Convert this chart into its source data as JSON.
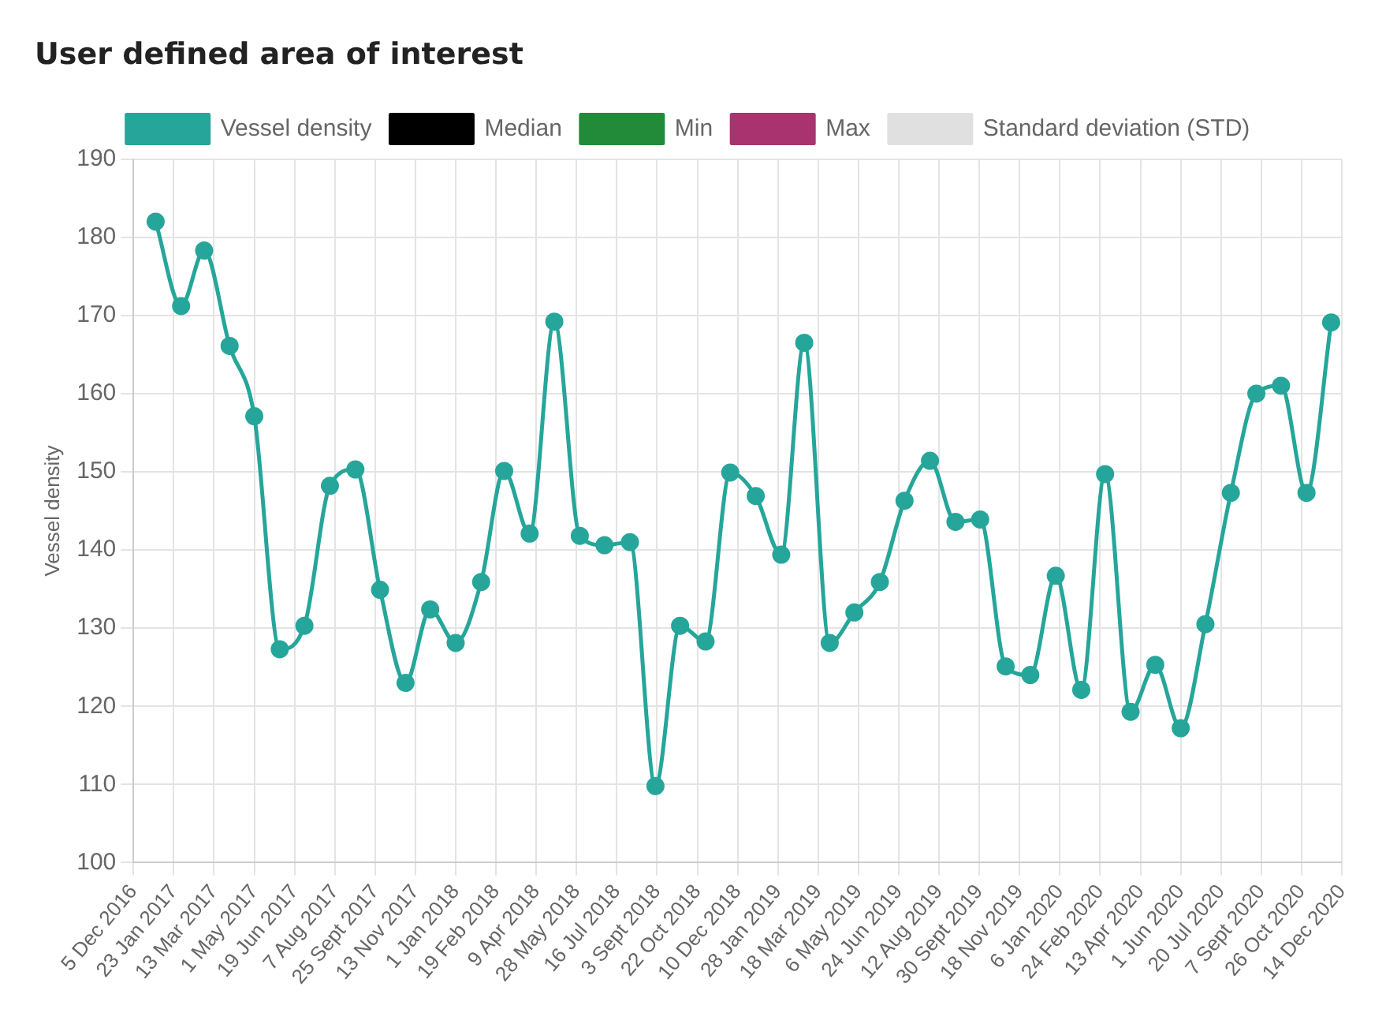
{
  "chart_data": {
    "type": "line",
    "title": "User defined area of interest",
    "ylabel": "Vessel density",
    "x": [
      "2017-01-01",
      "2017-02-01",
      "2017-03-01",
      "2017-04-01",
      "2017-05-01",
      "2017-06-01",
      "2017-07-01",
      "2017-08-01",
      "2017-09-01",
      "2017-10-01",
      "2017-11-01",
      "2017-12-01",
      "2018-01-01",
      "2018-02-01",
      "2018-03-01",
      "2018-04-01",
      "2018-05-01",
      "2018-06-01",
      "2018-07-01",
      "2018-08-01",
      "2018-09-01",
      "2018-10-01",
      "2018-11-01",
      "2018-12-01",
      "2019-01-01",
      "2019-02-01",
      "2019-03-01",
      "2019-04-01",
      "2019-05-01",
      "2019-06-01",
      "2019-07-01",
      "2019-08-01",
      "2019-09-01",
      "2019-10-01",
      "2019-11-01",
      "2019-12-01",
      "2020-01-01",
      "2020-02-01",
      "2020-03-01",
      "2020-04-01",
      "2020-05-01",
      "2020-06-01",
      "2020-07-01",
      "2020-08-01",
      "2020-09-01",
      "2020-10-01",
      "2020-11-01",
      "2020-12-01"
    ],
    "series": [
      {
        "name": "Vessel density",
        "color": "#26a69a",
        "values": [
          182,
          171.2,
          178.3,
          166.1,
          157.1,
          127.3,
          130.3,
          148.2,
          150.3,
          134.9,
          123,
          132.4,
          128.1,
          135.9,
          150.1,
          142.1,
          169.2,
          141.8,
          140.6,
          141,
          109.8,
          130.3,
          128.3,
          149.9,
          146.9,
          139.4,
          166.5,
          128.1,
          132,
          135.9,
          146.3,
          151.4,
          143.6,
          143.9,
          125.1,
          124,
          136.7,
          122.1,
          149.7,
          119.3,
          125.3,
          117.2,
          130.5,
          147.3,
          160,
          161,
          147.3,
          169.1
        ]
      },
      {
        "name": "Median",
        "color": "#000000",
        "values": [
          null,
          null,
          null,
          null,
          null,
          null,
          null,
          null,
          null,
          null,
          null,
          null,
          null,
          null,
          null,
          null,
          null,
          null,
          null,
          null,
          null,
          null,
          null,
          null,
          null,
          null,
          null,
          null,
          null,
          null,
          null,
          null,
          null,
          null,
          null,
          null,
          null,
          null,
          null,
          null,
          null,
          null,
          null,
          null,
          null,
          null,
          null,
          null
        ]
      },
      {
        "name": "Min",
        "color": "#228b3a",
        "values": [
          null,
          null,
          null,
          null,
          null,
          null,
          null,
          null,
          null,
          null,
          null,
          null,
          null,
          null,
          null,
          null,
          null,
          null,
          null,
          null,
          null,
          null,
          null,
          null,
          null,
          null,
          null,
          null,
          null,
          null,
          null,
          null,
          null,
          null,
          null,
          null,
          null,
          null,
          null,
          null,
          null,
          null,
          null,
          null,
          null,
          null,
          null,
          null
        ]
      },
      {
        "name": "Max",
        "color": "#a8336f",
        "values": [
          null,
          null,
          null,
          null,
          null,
          null,
          null,
          null,
          null,
          null,
          null,
          null,
          null,
          null,
          null,
          null,
          null,
          null,
          null,
          null,
          null,
          null,
          null,
          null,
          null,
          null,
          null,
          null,
          null,
          null,
          null,
          null,
          null,
          null,
          null,
          null,
          null,
          null,
          null,
          null,
          null,
          null,
          null,
          null,
          null,
          null,
          null,
          null
        ]
      },
      {
        "name": "Standard deviation (STD)",
        "color": "#e0e0e0",
        "values": [
          null,
          null,
          null,
          null,
          null,
          null,
          null,
          null,
          null,
          null,
          null,
          null,
          null,
          null,
          null,
          null,
          null,
          null,
          null,
          null,
          null,
          null,
          null,
          null,
          null,
          null,
          null,
          null,
          null,
          null,
          null,
          null,
          null,
          null,
          null,
          null,
          null,
          null,
          null,
          null,
          null,
          null,
          null,
          null,
          null,
          null,
          null,
          null
        ]
      }
    ],
    "xlim": [
      "2016-12-05",
      "2020-12-14"
    ],
    "xticks": [
      {
        "value": "2016-12-05",
        "label": "5 Dec 2016"
      },
      {
        "value": "2017-01-23",
        "label": "23 Jan 2017"
      },
      {
        "value": "2017-03-13",
        "label": "13 Mar 2017"
      },
      {
        "value": "2017-05-01",
        "label": "1 May 2017"
      },
      {
        "value": "2017-06-19",
        "label": "19 Jun 2017"
      },
      {
        "value": "2017-08-07",
        "label": "7 Aug 2017"
      },
      {
        "value": "2017-09-25",
        "label": "25 Sept 2017"
      },
      {
        "value": "2017-11-13",
        "label": "13 Nov 2017"
      },
      {
        "value": "2018-01-01",
        "label": "1 Jan 2018"
      },
      {
        "value": "2018-02-19",
        "label": "19 Feb 2018"
      },
      {
        "value": "2018-04-09",
        "label": "9 Apr 2018"
      },
      {
        "value": "2018-05-28",
        "label": "28 May 2018"
      },
      {
        "value": "2018-07-16",
        "label": "16 Jul 2018"
      },
      {
        "value": "2018-09-03",
        "label": "3 Sept 2018"
      },
      {
        "value": "2018-10-22",
        "label": "22 Oct 2018"
      },
      {
        "value": "2018-12-10",
        "label": "10 Dec 2018"
      },
      {
        "value": "2019-01-28",
        "label": "28 Jan 2019"
      },
      {
        "value": "2019-03-18",
        "label": "18 Mar 2019"
      },
      {
        "value": "2019-05-06",
        "label": "6 May 2019"
      },
      {
        "value": "2019-06-24",
        "label": "24 Jun 2019"
      },
      {
        "value": "2019-08-12",
        "label": "12 Aug 2019"
      },
      {
        "value": "2019-09-30",
        "label": "30 Sept 2019"
      },
      {
        "value": "2019-11-18",
        "label": "18 Nov 2019"
      },
      {
        "value": "2020-01-06",
        "label": "6 Jan 2020"
      },
      {
        "value": "2020-02-24",
        "label": "24 Feb 2020"
      },
      {
        "value": "2020-04-13",
        "label": "13 Apr 2020"
      },
      {
        "value": "2020-06-01",
        "label": "1 Jun 2020"
      },
      {
        "value": "2020-07-20",
        "label": "20 Jul 2020"
      },
      {
        "value": "2020-09-07",
        "label": "7 Sept 2020"
      },
      {
        "value": "2020-10-26",
        "label": "26 Oct 2020"
      },
      {
        "value": "2020-12-14",
        "label": "14 Dec 2020"
      }
    ],
    "ylim": [
      100,
      190
    ],
    "yticks": [
      100,
      110,
      120,
      130,
      140,
      150,
      160,
      170,
      180,
      190
    ],
    "grid": true,
    "legend": "top",
    "marker": "circle",
    "line_style": "solid"
  }
}
